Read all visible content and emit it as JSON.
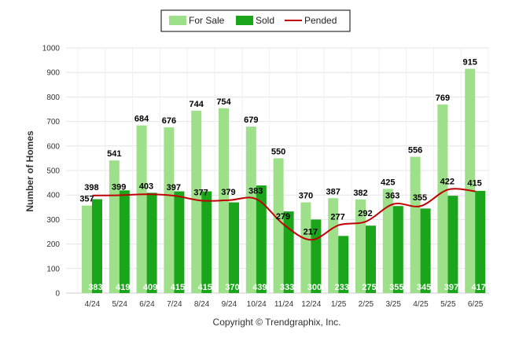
{
  "chart_data": {
    "type": "bar",
    "title": "",
    "ylabel": "Number of Homes",
    "xlabel": "",
    "ylim": [
      0,
      1000
    ],
    "yticks": [
      0,
      100,
      200,
      300,
      400,
      500,
      600,
      700,
      800,
      900,
      1000
    ],
    "grid": true,
    "legend_position": "top",
    "categories": [
      "4/24",
      "5/24",
      "6/24",
      "7/24",
      "8/24",
      "9/24",
      "10/24",
      "11/24",
      "12/24",
      "1/25",
      "2/25",
      "3/25",
      "4/25",
      "5/25",
      "6/25"
    ],
    "series": [
      {
        "name": "For Sale",
        "type": "bar",
        "color": "#9edf8a",
        "values": [
          357,
          541,
          684,
          676,
          744,
          754,
          679,
          550,
          370,
          387,
          382,
          425,
          556,
          769,
          915
        ]
      },
      {
        "name": "Sold",
        "type": "bar",
        "color": "#1aa51a",
        "values": [
          383,
          419,
          409,
          415,
          415,
          370,
          439,
          333,
          300,
          233,
          275,
          355,
          345,
          397,
          417
        ]
      },
      {
        "name": "Pended",
        "type": "line",
        "color": "#c00000",
        "values": [
          398,
          399,
          403,
          397,
          377,
          379,
          383,
          279,
          217,
          277,
          292,
          363,
          355,
          422,
          415
        ]
      }
    ]
  },
  "copyright": "Copyright © Trendgraphix, Inc."
}
